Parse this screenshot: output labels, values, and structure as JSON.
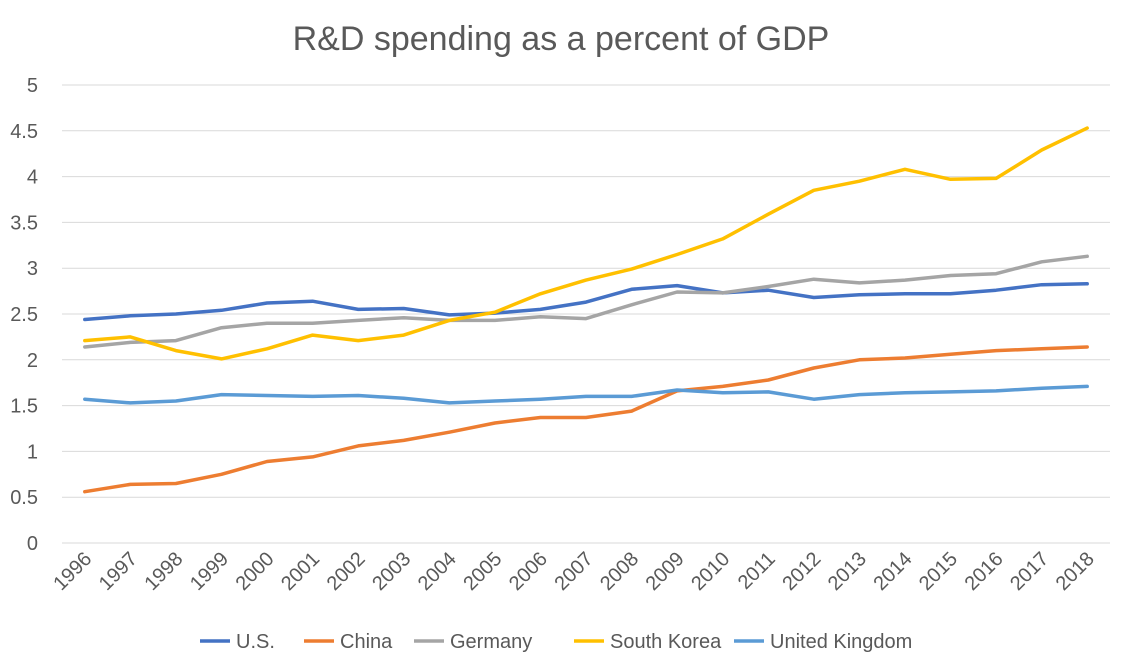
{
  "chart_data": {
    "type": "line",
    "title": "R&D spending as a percent of GDP",
    "xlabel": "",
    "ylabel": "",
    "ylim": [
      0,
      5
    ],
    "yticks": [
      0,
      0.5,
      1,
      1.5,
      2,
      2.5,
      3,
      3.5,
      4,
      4.5,
      5
    ],
    "grid": true,
    "legend_position": "bottom",
    "x": [
      "1996",
      "1997",
      "1998",
      "1999",
      "2000",
      "2001",
      "2002",
      "2003",
      "2004",
      "2005",
      "2006",
      "2007",
      "2008",
      "2009",
      "2010",
      "2011",
      "2012",
      "2013",
      "2014",
      "2015",
      "2016",
      "2017",
      "2018"
    ],
    "series": [
      {
        "name": "U.S.",
        "color": "#4472c4",
        "values": [
          2.44,
          2.48,
          2.5,
          2.54,
          2.62,
          2.64,
          2.55,
          2.56,
          2.49,
          2.51,
          2.55,
          2.63,
          2.77,
          2.81,
          2.73,
          2.76,
          2.68,
          2.71,
          2.72,
          2.72,
          2.76,
          2.82,
          2.83
        ]
      },
      {
        "name": "China",
        "color": "#ed7d31",
        "values": [
          0.56,
          0.64,
          0.65,
          0.75,
          0.89,
          0.94,
          1.06,
          1.12,
          1.21,
          1.31,
          1.37,
          1.37,
          1.44,
          1.66,
          1.71,
          1.78,
          1.91,
          2.0,
          2.02,
          2.06,
          2.1,
          2.12,
          2.14
        ]
      },
      {
        "name": "Germany",
        "color": "#a5a5a5",
        "values": [
          2.14,
          2.19,
          2.21,
          2.35,
          2.4,
          2.4,
          2.43,
          2.46,
          2.43,
          2.43,
          2.47,
          2.45,
          2.6,
          2.74,
          2.73,
          2.8,
          2.88,
          2.84,
          2.87,
          2.92,
          2.94,
          3.07,
          3.13
        ]
      },
      {
        "name": "South Korea",
        "color": "#ffc000",
        "values": [
          2.21,
          2.25,
          2.1,
          2.01,
          2.12,
          2.27,
          2.21,
          2.27,
          2.43,
          2.52,
          2.72,
          2.87,
          2.99,
          3.15,
          3.32,
          3.59,
          3.85,
          3.95,
          4.08,
          3.97,
          3.98,
          4.29,
          4.53
        ]
      },
      {
        "name": "United Kingdom",
        "color": "#5b9bd5",
        "values": [
          1.57,
          1.53,
          1.55,
          1.62,
          1.61,
          1.6,
          1.61,
          1.58,
          1.53,
          1.55,
          1.57,
          1.6,
          1.6,
          1.67,
          1.64,
          1.65,
          1.57,
          1.62,
          1.64,
          1.65,
          1.66,
          1.69,
          1.71
        ]
      }
    ]
  }
}
